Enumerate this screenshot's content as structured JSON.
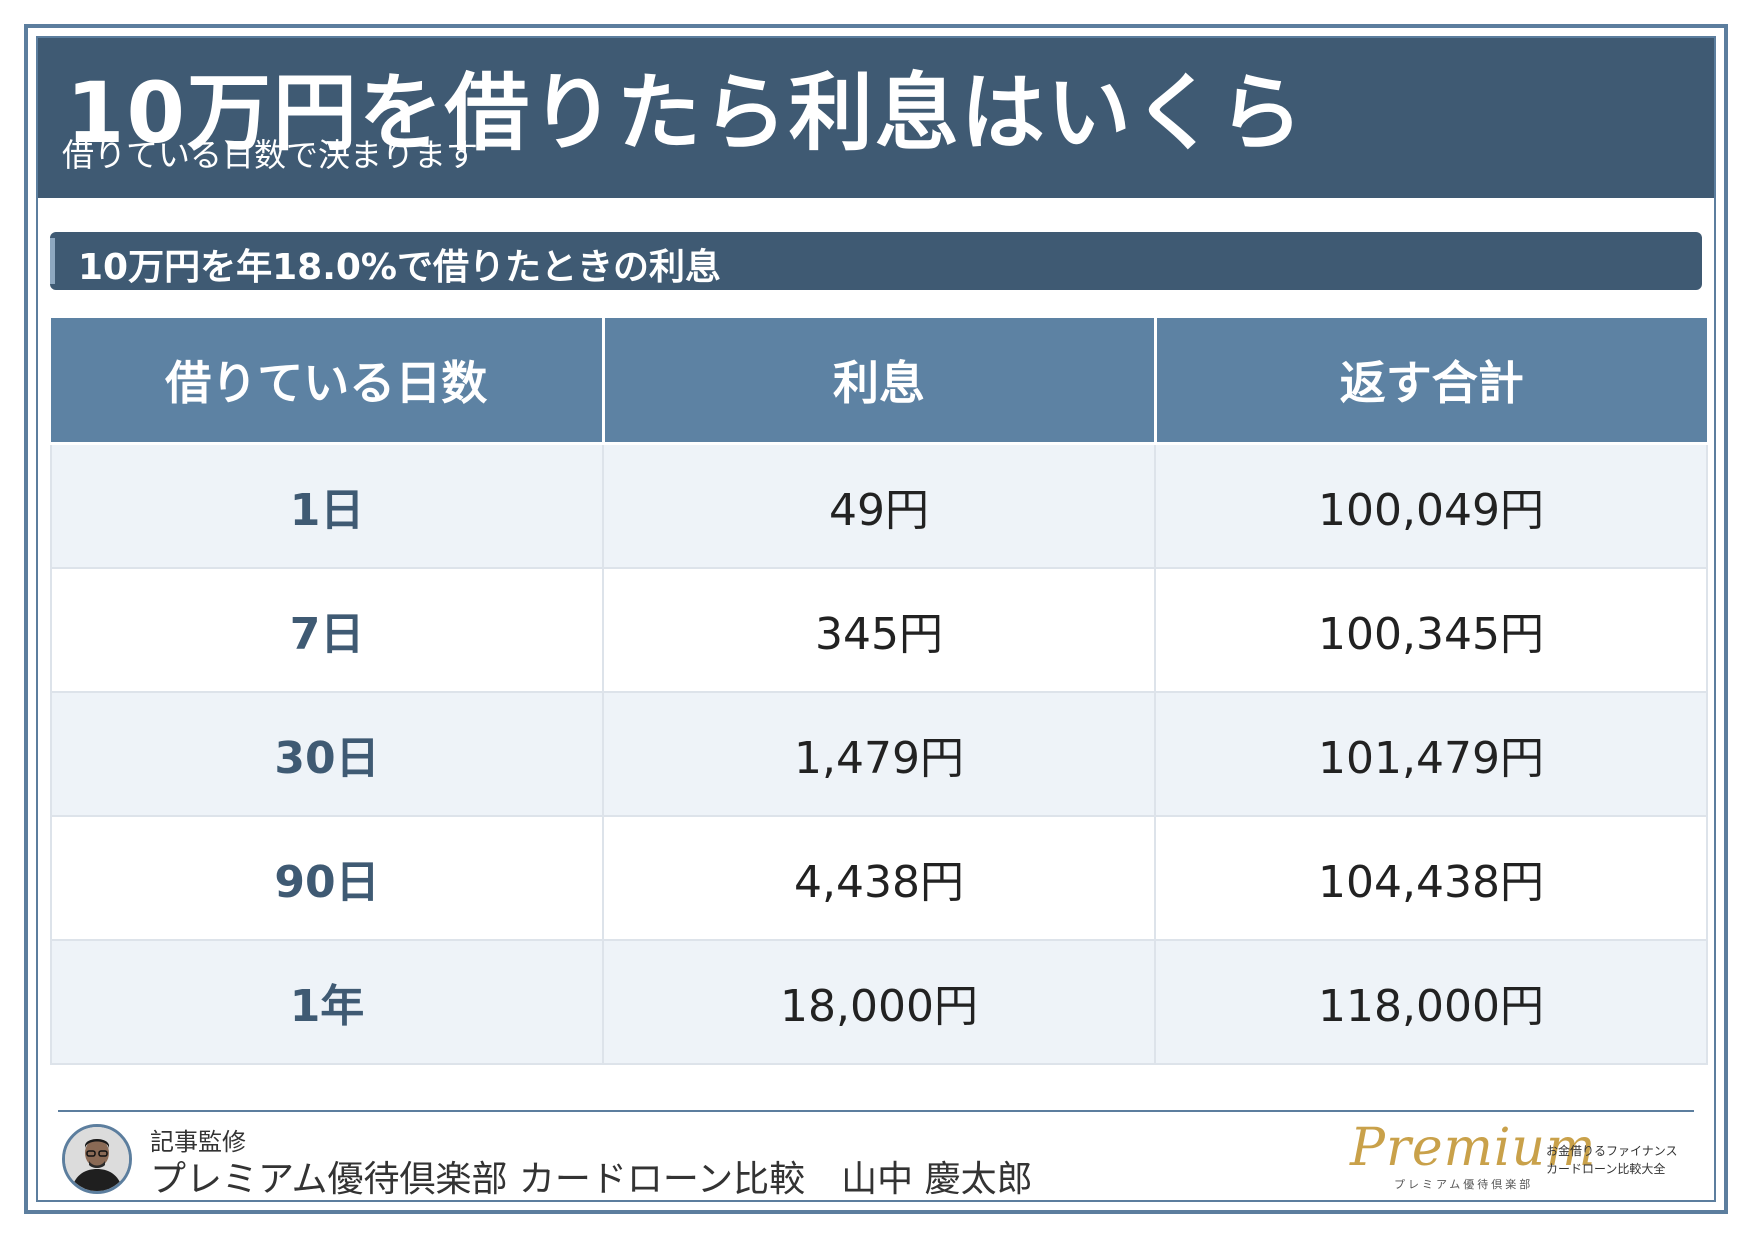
{
  "header": {
    "title": "10万円を借りたら利息はいくら",
    "subtitle": "借りている日数で決まります"
  },
  "section": {
    "title": "10万円を年18.0%で借りたときの利息"
  },
  "table": {
    "headers": [
      "借りている日数",
      "利息",
      "返す合計"
    ],
    "rows": [
      [
        "1日",
        "49円",
        "100,049円"
      ],
      [
        "7日",
        "345円",
        "100,345円"
      ],
      [
        "30日",
        "1,479円",
        "101,479円"
      ],
      [
        "90日",
        "4,438円",
        "104,438円"
      ],
      [
        "1年",
        "18,000円",
        "118,000円"
      ]
    ]
  },
  "footer": {
    "supervision_label": "記事監修",
    "supervisor": "プレミアム優待倶楽部 カードローン比較　山中 慶太郎",
    "avatar_icon": "person-avatar-icon"
  },
  "logo": {
    "script": "Premium",
    "kana": "プレミアム優待倶楽部",
    "tagline_1": "お金借りるファイナンス",
    "tagline_2": "カードローン比較大全"
  },
  "colors": {
    "header_bg": "#3f5a73",
    "table_header_bg": "#5d82a3",
    "row_alt_bg": "#eef3f8",
    "logo_gold": "#c9a14a"
  }
}
